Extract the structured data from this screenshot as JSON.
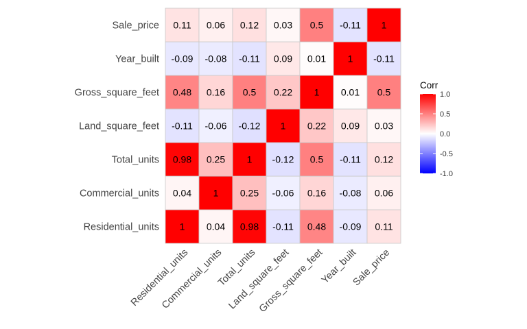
{
  "chart_data": {
    "type": "heatmap",
    "title": "",
    "xlabel": "",
    "ylabel": "",
    "variables": [
      "Residential_units",
      "Commercial_units",
      "Total_units",
      "Land_square_feet",
      "Gross_square_feet",
      "Year_built",
      "Sale_price"
    ],
    "x_categories": [
      "Residential_units",
      "Commercial_units",
      "Total_units",
      "Land_square_feet",
      "Gross_square_feet",
      "Year_built",
      "Sale_price"
    ],
    "y_categories_top_to_bottom": [
      "Sale_price",
      "Year_built",
      "Gross_square_feet",
      "Land_square_feet",
      "Total_units",
      "Commercial_units",
      "Residential_units"
    ],
    "matrix_labels": [
      [
        "1",
        "0.04",
        "0.98",
        "-0.11",
        "0.48",
        "-0.09",
        "0.11"
      ],
      [
        "0.04",
        "1",
        "0.25",
        "-0.06",
        "0.16",
        "-0.08",
        "0.06"
      ],
      [
        "0.98",
        "0.25",
        "1",
        "-0.12",
        "0.5",
        "-0.11",
        "0.12"
      ],
      [
        "-0.11",
        "-0.06",
        "-0.12",
        "1",
        "0.22",
        "0.09",
        "0.03"
      ],
      [
        "0.48",
        "0.16",
        "0.5",
        "0.22",
        "1",
        "0.01",
        "0.5"
      ],
      [
        "-0.09",
        "-0.08",
        "-0.11",
        "0.09",
        "0.01",
        "1",
        "-0.11"
      ],
      [
        "0.11",
        "0.06",
        "0.12",
        "0.03",
        "0.5",
        "-0.11",
        "1"
      ]
    ],
    "legend": {
      "title": "Corr",
      "ticks": [
        "1.0",
        "0.5",
        "0.0",
        "-0.5",
        "-1.0"
      ],
      "range": [
        -1,
        1
      ],
      "placement": "right"
    },
    "colors": {
      "low": "#0000FF",
      "mid": "#FFFFFF",
      "high": "#FF0000",
      "cell_border": "#C8C8C8"
    },
    "grid": false
  }
}
